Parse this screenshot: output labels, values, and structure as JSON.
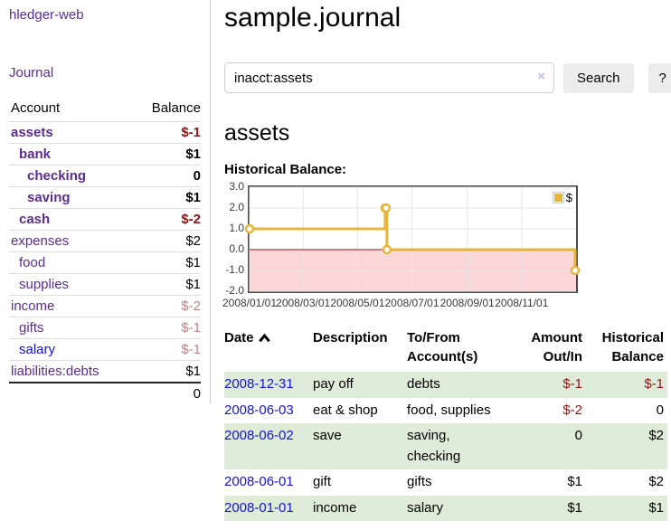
{
  "colors": {
    "link_purple": "#5c2d91",
    "link_blue": "#1414d2",
    "negative_strong": "#8f1515",
    "negative_soft": "#c88080",
    "row_green": "#ddebd8",
    "button_gray": "#ececec",
    "divider_gray": "#cccccc"
  },
  "brand": "hledger-web",
  "sidebar": {
    "journal_label": "Journal",
    "accounts_table": {
      "headers": [
        "Account",
        "Balance"
      ],
      "rows": [
        {
          "name": "assets",
          "depth": 0,
          "bold": true,
          "balance": "$-1",
          "balance_style": "neg-strong"
        },
        {
          "name": "bank",
          "depth": 1,
          "bold": true,
          "balance": "$1",
          "balance_style": "pos"
        },
        {
          "name": "checking",
          "depth": 2,
          "bold": true,
          "balance": "0",
          "balance_style": "pos"
        },
        {
          "name": "saving",
          "depth": 2,
          "bold": true,
          "balance": "$1",
          "balance_style": "pos"
        },
        {
          "name": "cash",
          "depth": 1,
          "bold": true,
          "balance": "$-2",
          "balance_style": "neg-strong"
        },
        {
          "name": "expenses",
          "depth": 0,
          "bold": false,
          "balance": "$2",
          "balance_style": "pos"
        },
        {
          "name": "food",
          "depth": 1,
          "bold": false,
          "balance": "$1",
          "balance_style": "pos"
        },
        {
          "name": "supplies",
          "depth": 1,
          "bold": false,
          "balance": "$1",
          "balance_style": "pos"
        },
        {
          "name": "income",
          "depth": 0,
          "bold": false,
          "balance": "$-2",
          "balance_style": "neg-soft"
        },
        {
          "name": "gifts",
          "depth": 1,
          "bold": false,
          "balance": "$-1",
          "balance_style": "neg-soft"
        },
        {
          "name": "salary",
          "depth": 1,
          "bold": false,
          "link_color": "blue",
          "balance": "$-1",
          "balance_style": "neg-soft"
        },
        {
          "name": "liabilities:debts",
          "depth": 0,
          "bold": false,
          "balance": "$1",
          "balance_style": "pos"
        }
      ],
      "total": "0"
    }
  },
  "main": {
    "title": "sample.journal",
    "search": {
      "value": "inacct:assets",
      "clear_icon": "×",
      "search_button": "Search",
      "help_button": "?"
    },
    "account_heading": "assets",
    "chart_heading": "Historical Balance:",
    "register_table": {
      "headers": [
        "Date",
        "Description",
        "To/From Account(s)",
        "Amount Out/In",
        "Historical Balance"
      ],
      "rows": [
        {
          "date": "2008-12-31",
          "description": "pay off",
          "accounts": "debts",
          "amount": "$-1",
          "amount_style": "neg",
          "balance": "$-1",
          "balance_style": "neg"
        },
        {
          "date": "2008-06-03",
          "description": "eat & shop",
          "accounts": "food, supplies",
          "amount": "$-2",
          "amount_style": "neg",
          "balance": "0",
          "balance_style": "pos"
        },
        {
          "date": "2008-06-02",
          "description": "save",
          "accounts": "saving, checking",
          "amount": "0",
          "amount_style": "pos",
          "balance": "$2",
          "balance_style": "pos"
        },
        {
          "date": "2008-06-01",
          "description": "gift",
          "accounts": "gifts",
          "amount": "$1",
          "amount_style": "pos",
          "balance": "$2",
          "balance_style": "pos"
        },
        {
          "date": "2008-01-01",
          "description": "income",
          "accounts": "salary",
          "amount": "$1",
          "amount_style": "pos",
          "balance": "$1",
          "balance_style": "pos"
        }
      ]
    }
  },
  "chart_data": {
    "type": "line",
    "title": "Historical Balance:",
    "xlim": [
      "2008-01-01",
      "2009-01-01"
    ],
    "ylim": [
      -2,
      3
    ],
    "step": true,
    "grid": true,
    "legend_position": "top-right",
    "series": [
      {
        "name": "$",
        "color": "#e5b63a",
        "points": [
          [
            "2008-01-01",
            1
          ],
          [
            "2008-06-01",
            2
          ],
          [
            "2008-06-02",
            2
          ],
          [
            "2008-06-03",
            0
          ],
          [
            "2008-12-31",
            -1
          ]
        ]
      }
    ],
    "x_ticks": [
      {
        "date": "2008-01-01",
        "label": "2008/01/01"
      },
      {
        "date": "2008-03-01",
        "label": "2008/03/01"
      },
      {
        "date": "2008-05-01",
        "label": "2008/05/01"
      },
      {
        "date": "2008-07-01",
        "label": "2008/07/01"
      },
      {
        "date": "2008-09-01",
        "label": "2008/09/01"
      },
      {
        "date": "2008-11-01",
        "label": "2008/11/01"
      }
    ],
    "y_ticks": [
      {
        "value": 3,
        "label": "3.0"
      },
      {
        "value": 2,
        "label": "2.0"
      },
      {
        "value": 1,
        "label": "1.0"
      },
      {
        "value": 0,
        "label": "0.0"
      },
      {
        "value": -1,
        "label": "-1.0"
      },
      {
        "value": -2,
        "label": "-2.0"
      }
    ],
    "negative_region_color": "#fbd6d6",
    "zero_line_color": "#8c1414",
    "gridline_color": "#e6e6e6",
    "legend": {
      "label": "$",
      "swatch_color": "#e5b63a"
    }
  }
}
